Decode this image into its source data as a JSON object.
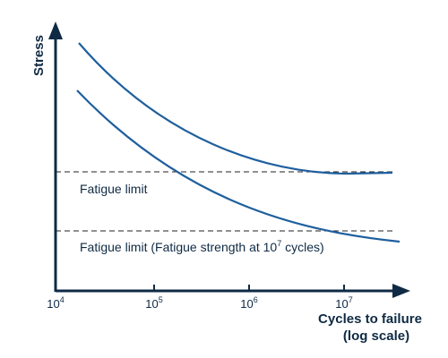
{
  "axes": {
    "y_label": "Stress",
    "x_label_line1": "Cycles to failure",
    "x_label_line2": "(log scale)"
  },
  "x_ticks": [
    {
      "base": "10",
      "exp": "4"
    },
    {
      "base": "10",
      "exp": "5"
    },
    {
      "base": "10",
      "exp": "6"
    },
    {
      "base": "10",
      "exp": "7"
    }
  ],
  "annotations": {
    "fatigue_limit_label": "Fatigue limit",
    "fatigue_strength_label_prefix": "Fatigue limit (Fatigue strength at 10",
    "fatigue_strength_label_exp": "7",
    "fatigue_strength_label_suffix": " cycles)"
  },
  "colors": {
    "curve": "#1f5f9e",
    "axis": "#0f2a44",
    "dashed_line": "#222222",
    "text": "#0f2a44"
  }
}
